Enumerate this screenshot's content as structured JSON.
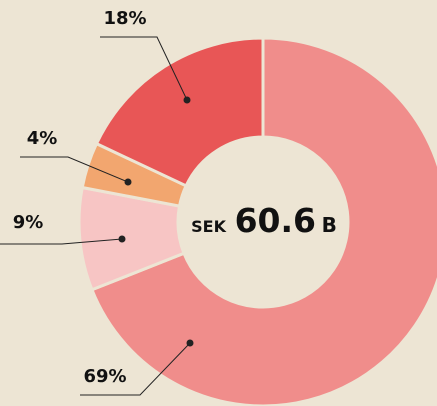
{
  "chart_data": {
    "type": "donut",
    "values": [
      69,
      9,
      4,
      18
    ],
    "value_labels": [
      "69%",
      "9%",
      "4%",
      "18%"
    ],
    "colors": [
      "#f08d8b",
      "#f7c5c4",
      "#f2a66f",
      "#e85656"
    ],
    "center_label": {
      "prefix": "SEK",
      "amount": "60.6",
      "suffix": "B"
    }
  }
}
